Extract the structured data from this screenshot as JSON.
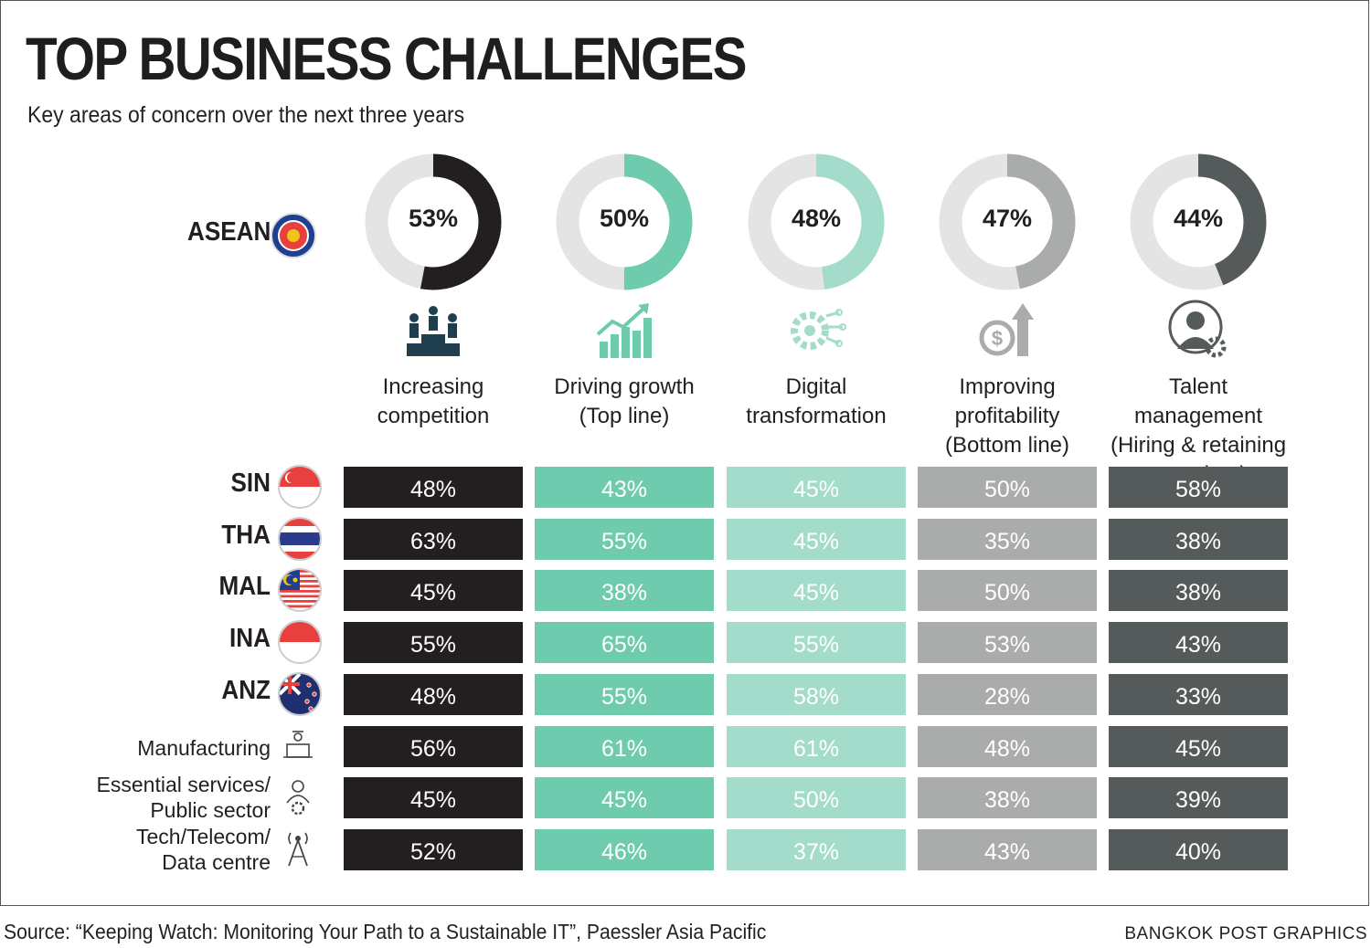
{
  "title": "TOP BUSINESS CHALLENGES",
  "subtitle": "Key areas of concern over the next three years",
  "asean_label": "ASEAN",
  "source": "Source: “Keeping Watch: Monitoring Your Path to a Sustainable IT”, Paessler Asia Pacific",
  "credit": "BANGKOK POST GRAPHICS",
  "colors": {
    "competition": "#231f20",
    "growth": "#6fcbae",
    "digital": "#a3dccb",
    "profitability": "#a9acab",
    "talent": "#555b5b",
    "track": "#e4e4e4"
  },
  "chart_data": {
    "type": "table",
    "title": "TOP BUSINESS CHALLENGES",
    "subtitle": "Key areas of concern over the next three years",
    "categories": [
      {
        "key": "competition",
        "label_lines": [
          "Increasing",
          "competition"
        ],
        "icon": "podium-people-icon"
      },
      {
        "key": "growth",
        "label_lines": [
          "Driving growth",
          "(Top line)"
        ],
        "icon": "growth-chart-icon"
      },
      {
        "key": "digital",
        "label_lines": [
          "Digital",
          "transformation"
        ],
        "icon": "gear-circuit-icon"
      },
      {
        "key": "profitability",
        "label_lines": [
          "Improving",
          "profitability",
          "(Bottom line)"
        ],
        "icon": "dollar-arrow-icon"
      },
      {
        "key": "talent",
        "label_lines": [
          "Talent management",
          "(Hiring & retaining",
          "top talent)"
        ],
        "icon": "person-gear-icon"
      }
    ],
    "asean": {
      "label": "ASEAN",
      "values": [
        53,
        50,
        48,
        47,
        44
      ],
      "display": [
        "53%",
        "50%",
        "48%",
        "47%",
        "44%"
      ]
    },
    "rows": [
      {
        "label_lines": [
          "SIN"
        ],
        "kind": "country",
        "icon": "singapore-flag-icon",
        "values": [
          48,
          43,
          45,
          50,
          58
        ],
        "display": [
          "48%",
          "43%",
          "45%",
          "50%",
          "58%"
        ]
      },
      {
        "label_lines": [
          "THA"
        ],
        "kind": "country",
        "icon": "thailand-flag-icon",
        "values": [
          63,
          55,
          45,
          35,
          38
        ],
        "display": [
          "63%",
          "55%",
          "45%",
          "35%",
          "38%"
        ]
      },
      {
        "label_lines": [
          "MAL"
        ],
        "kind": "country",
        "icon": "malaysia-flag-icon",
        "values": [
          45,
          38,
          45,
          50,
          38
        ],
        "display": [
          "45%",
          "38%",
          "45%",
          "50%",
          "38%"
        ]
      },
      {
        "label_lines": [
          "INA"
        ],
        "kind": "country",
        "icon": "indonesia-flag-icon",
        "values": [
          55,
          65,
          55,
          53,
          43
        ],
        "display": [
          "55%",
          "65%",
          "55%",
          "53%",
          "43%"
        ]
      },
      {
        "label_lines": [
          "ANZ"
        ],
        "kind": "country",
        "icon": "anz-flag-icon",
        "values": [
          48,
          55,
          58,
          28,
          33
        ],
        "display": [
          "48%",
          "55%",
          "58%",
          "28%",
          "33%"
        ]
      },
      {
        "label_lines": [
          "Manufacturing"
        ],
        "kind": "sector",
        "icon": "factory-worker-icon",
        "values": [
          56,
          61,
          61,
          48,
          45
        ],
        "display": [
          "56%",
          "61%",
          "61%",
          "48%",
          "45%"
        ]
      },
      {
        "label_lines": [
          "Essential services/",
          "Public sector"
        ],
        "kind": "sector",
        "icon": "person-gear-outline-icon",
        "values": [
          45,
          45,
          50,
          38,
          39
        ],
        "display": [
          "45%",
          "45%",
          "50%",
          "38%",
          "39%"
        ]
      },
      {
        "label_lines": [
          "Tech/Telecom/",
          "Data centre"
        ],
        "kind": "sector",
        "icon": "antenna-tower-icon",
        "values": [
          52,
          46,
          37,
          43,
          40
        ],
        "display": [
          "52%",
          "46%",
          "37%",
          "43%",
          "40%"
        ]
      }
    ]
  }
}
